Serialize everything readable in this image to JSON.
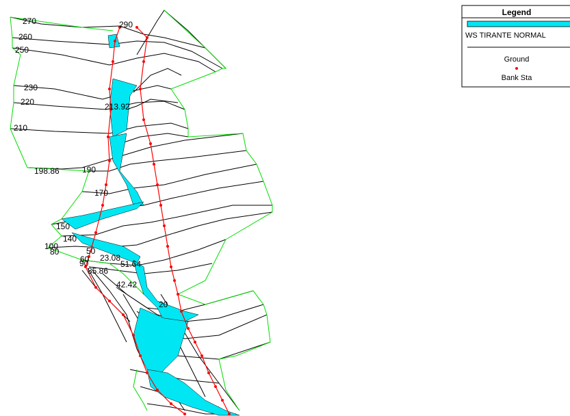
{
  "legend": {
    "title": "Legend",
    "ws_label": "WS TIRANTE NORMAL",
    "ground_label": "Ground",
    "bank_label": "Bank Sta"
  },
  "colors": {
    "water": "#00e6f2",
    "ground": "#000000",
    "bank": "#ff0000",
    "boundary": "#00dd00"
  },
  "stations": [
    "290",
    "270",
    "260",
    "250",
    "230",
    "220",
    "213.92",
    "210",
    "198.86",
    "190",
    "170",
    "150",
    "140",
    "100",
    "90",
    "80",
    "60",
    "50",
    "23.08",
    "51.64",
    "85.86",
    "42.42",
    "20"
  ]
}
